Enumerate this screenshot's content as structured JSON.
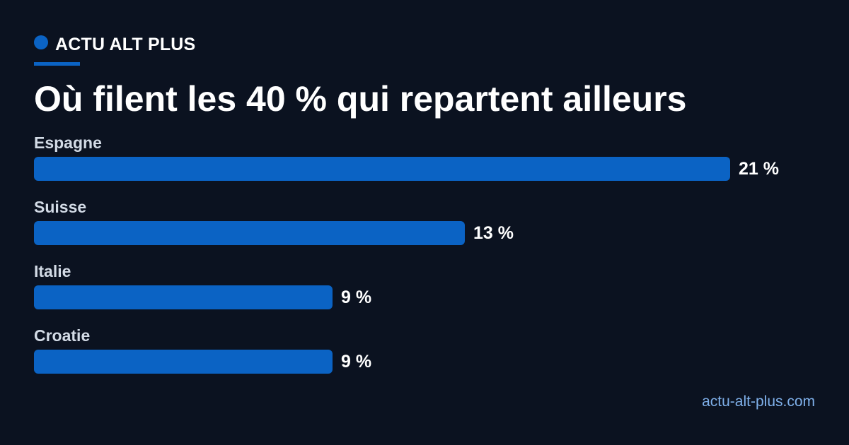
{
  "brand": {
    "name": "ACTU ALT PLUS",
    "accent_color": "#0b63c4"
  },
  "headline": "Où filent les 40 % qui repartent ailleurs",
  "footer": {
    "url": "actu-alt-plus.com"
  },
  "chart_data": {
    "type": "bar",
    "orientation": "horizontal",
    "categories": [
      "Espagne",
      "Suisse",
      "Italie",
      "Croatie"
    ],
    "values": [
      21,
      13,
      9,
      9
    ],
    "value_labels": [
      "21 %",
      "13 %",
      "9 %",
      "9 %"
    ],
    "unit": "%",
    "bar_color": "#0b63c4",
    "grid": false,
    "legend": "none"
  }
}
